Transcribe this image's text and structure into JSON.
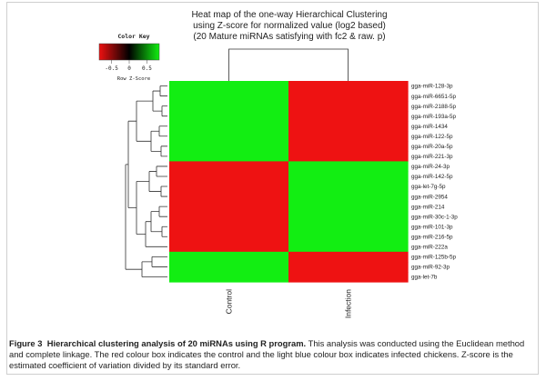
{
  "chart_data": {
    "type": "heatmap",
    "title_lines": [
      "Heat map of the one-way Hierarchical Clustering",
      "using Z-score for normalized value (log2 based)",
      "(20 Mature miRNAs satisfying with fc2 & raw. p)"
    ],
    "columns": [
      "Control",
      "Infection"
    ],
    "rows": [
      "gga-miR-128-3p",
      "gga-miR-6651-5p",
      "gga-miR-2188-5p",
      "gga-miR-193a-5p",
      "gga-miR-1434",
      "gga-miR-122-5p",
      "gga-miR-20a-5p",
      "gga-miR-221-3p",
      "gga-miR-24-3p",
      "gga-miR-142-5p",
      "gga-let-7g-5p",
      "gga-miR-2954",
      "gga-miR-214",
      "gga-miR-30c-1-3p",
      "gga-miR-101-3p",
      "gga-miR-216-5p",
      "gga-miR-222a",
      "gga-miR-125b-5p",
      "gga-miR-92-3p",
      "gga-let-7b"
    ],
    "values": [
      [
        0.7,
        -0.7
      ],
      [
        0.7,
        -0.7
      ],
      [
        0.7,
        -0.7
      ],
      [
        0.7,
        -0.7
      ],
      [
        0.7,
        -0.7
      ],
      [
        0.7,
        -0.7
      ],
      [
        0.7,
        -0.7
      ],
      [
        0.7,
        -0.7
      ],
      [
        -0.7,
        0.7
      ],
      [
        -0.7,
        0.7
      ],
      [
        -0.7,
        0.7
      ],
      [
        -0.7,
        0.7
      ],
      [
        -0.7,
        0.7
      ],
      [
        -0.7,
        0.7
      ],
      [
        -0.7,
        0.7
      ],
      [
        -0.7,
        0.7
      ],
      [
        -0.7,
        0.7
      ],
      [
        0.7,
        -0.7
      ],
      [
        0.7,
        -0.7
      ],
      [
        0.7,
        -0.7
      ]
    ],
    "color_key": {
      "title": "Color Key",
      "xlabel": "Row Z-Score",
      "ticks": [
        "-0.5",
        "0",
        "0.5"
      ],
      "tick_values": [
        -0.5,
        0,
        0.5
      ],
      "range": [
        -0.85,
        0.85
      ],
      "low_color": "#ee1111",
      "mid_color": "#000000",
      "high_color": "#11ee11"
    },
    "colors": {
      "high": "#12ee12",
      "low": "#ee1212"
    }
  },
  "caption": {
    "label": "Figure 3",
    "title": "Hierarchical clustering analysis of 20 miRNAs using R program.",
    "text": "This analysis was conducted using the Euclidean method and complete linkage. The red colour box indicates the control and the light blue colour box indicates infected chickens. Z-score is the estimated coefficient of variation divided by its standard error."
  }
}
